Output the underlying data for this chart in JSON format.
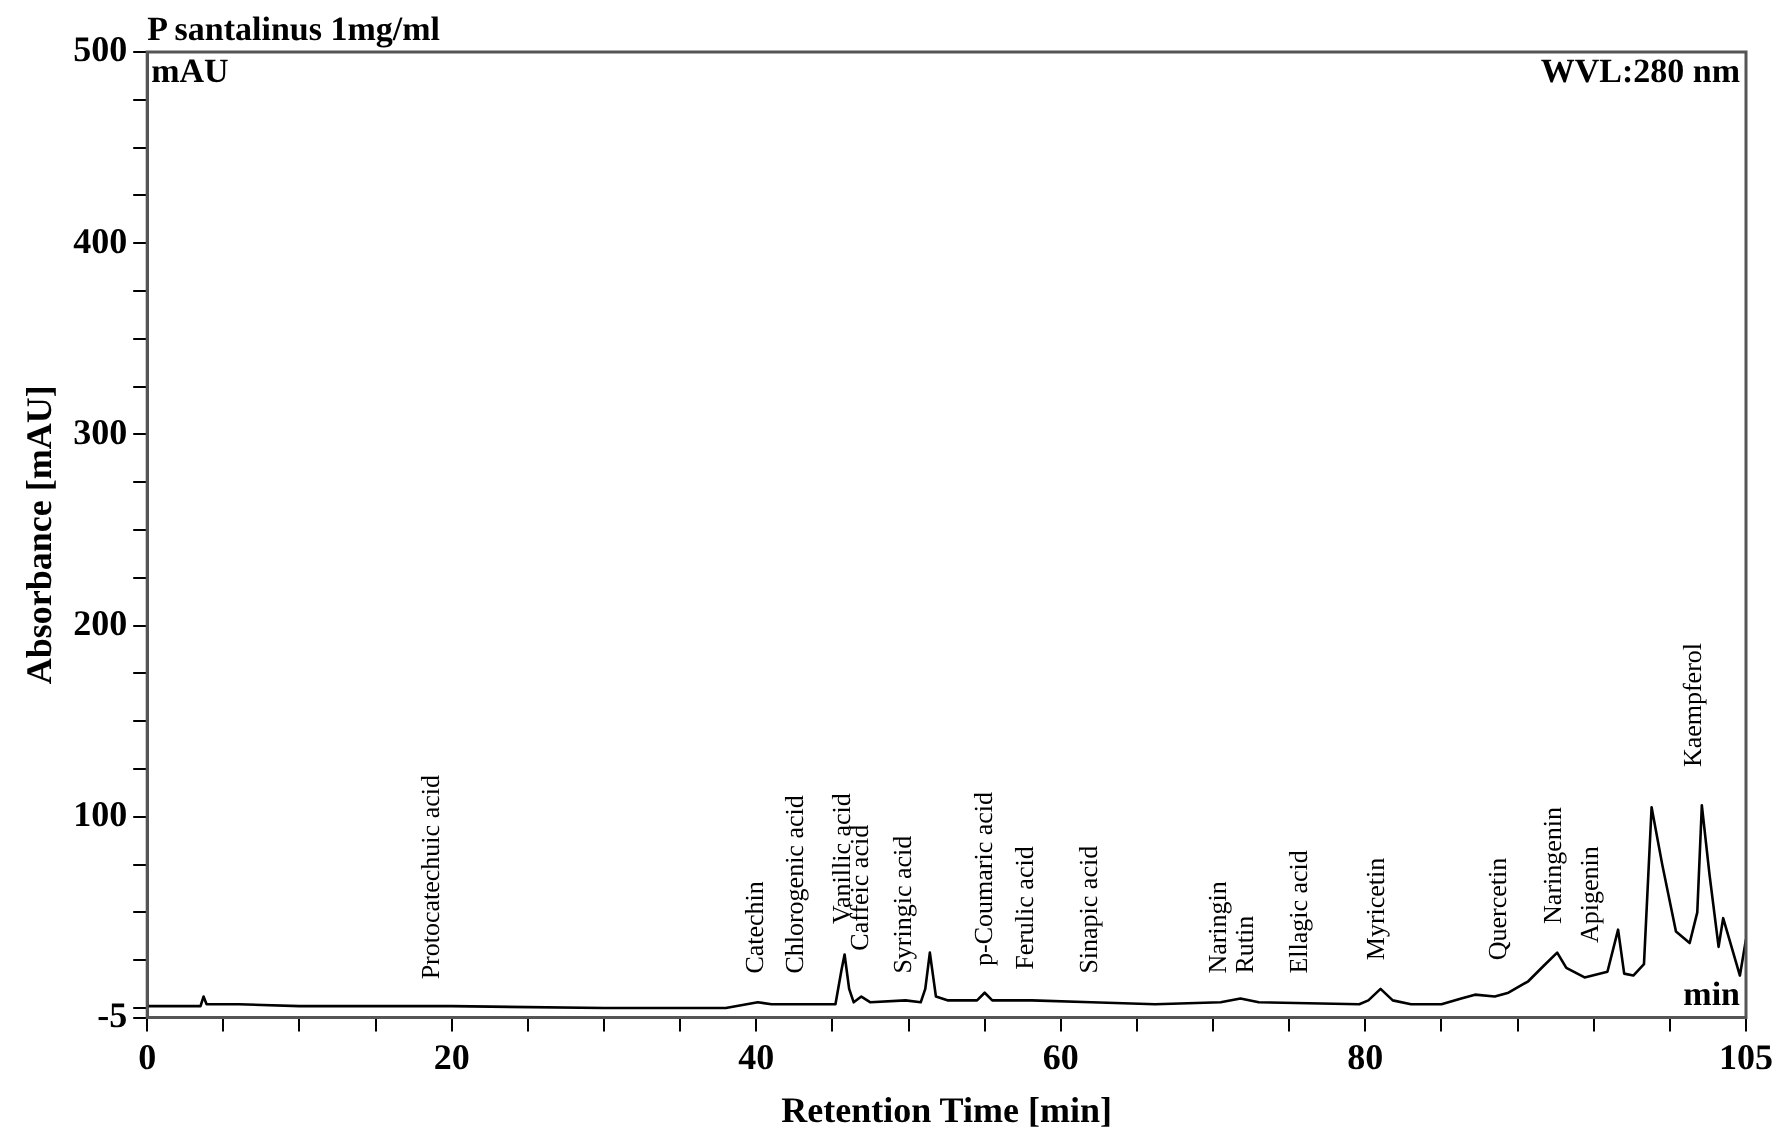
{
  "chart_data": {
    "type": "line",
    "title": "P santalinus 1mg/ml",
    "xlabel": "Retention Time [min]",
    "ylabel": "Absorbance [mAU]",
    "xlim": [
      0,
      105
    ],
    "ylim": [
      -5,
      500
    ],
    "xticks": [
      0,
      {
        "value": 5,
        "label": null
      },
      {
        "value": 10,
        "label": null
      },
      {
        "value": 15,
        "label": null
      },
      20,
      {
        "value": 25,
        "label": null
      },
      {
        "value": 30,
        "label": null
      },
      {
        "value": 35,
        "label": null
      },
      40,
      {
        "value": 45,
        "label": null
      },
      {
        "value": 50,
        "label": null
      },
      {
        "value": 55,
        "label": null
      },
      60,
      {
        "value": 65,
        "label": null
      },
      {
        "value": 70,
        "label": null
      },
      {
        "value": 75,
        "label": null
      },
      80,
      {
        "value": 85,
        "label": null
      },
      {
        "value": 90,
        "label": null
      },
      {
        "value": 95,
        "label": null
      },
      {
        "value": 100,
        "label": null
      },
      105
    ],
    "yticks": [
      -5,
      {
        "value": 0,
        "label": null
      },
      {
        "value": 25,
        "label": null
      },
      {
        "value": 50,
        "label": null
      },
      {
        "value": 75,
        "label": null
      },
      100,
      {
        "value": 125,
        "label": null
      },
      {
        "value": 150,
        "label": null
      },
      {
        "value": 175,
        "label": null
      },
      200,
      {
        "value": 225,
        "label": null
      },
      {
        "value": 250,
        "label": null
      },
      {
        "value": 275,
        "label": null
      },
      300,
      {
        "value": 325,
        "label": null
      },
      {
        "value": 350,
        "label": null
      },
      {
        "value": 375,
        "label": null
      },
      400,
      {
        "value": 425,
        "label": null
      },
      {
        "value": 450,
        "label": null
      },
      {
        "value": 475,
        "label": null
      },
      500
    ],
    "grid": false,
    "legend": false,
    "marker": "none",
    "line_style": "solid",
    "series": [
      {
        "color": "#000000",
        "x": [
          0,
          3.5,
          3.7,
          3.9,
          6,
          10,
          20,
          30,
          38,
          40.1,
          41,
          42.7,
          43.5,
          45.2,
          45.6,
          45.8,
          46.1,
          46.4,
          46.9,
          47.5,
          49.8,
          50.8,
          51.1,
          51.4,
          51.8,
          52.6,
          54.5,
          55.0,
          55.5,
          58.1,
          62,
          66.2,
          70.5,
          71.8,
          73,
          79.6,
          80.2,
          81.0,
          81.8,
          83,
          85,
          86.3,
          87.2,
          88.5,
          89.4,
          90.7,
          91.7,
          92.6,
          93.2,
          94.4,
          95.9,
          96.6,
          97.0,
          97.6,
          98.3,
          98.8,
          99.5,
          100.4,
          101.3,
          101.8,
          102.1,
          102.6,
          103.2,
          103.5,
          104.6,
          105
        ],
        "values": [
          1,
          1,
          6,
          2,
          2,
          1,
          1,
          0,
          0,
          3,
          2,
          2,
          2,
          2,
          20,
          28,
          10,
          3,
          6,
          3,
          4,
          3,
          10,
          29,
          6,
          4,
          4,
          8,
          4,
          4,
          3,
          2,
          3,
          5,
          3,
          2,
          4,
          10,
          4,
          2,
          2,
          5,
          7,
          6,
          8,
          14,
          22,
          29,
          21,
          16,
          19,
          41,
          18,
          17,
          23,
          105,
          75,
          40,
          34,
          50,
          106,
          70,
          32,
          47,
          17,
          36
        ]
      }
    ],
    "annotations": [
      "mAU",
      "WVL:280 nm",
      "min",
      "Protocatechuic acid",
      "Catechin",
      "Chlorogenic acid",
      "Vanillic acid",
      "Caffeic acid",
      "Syringic acid",
      "p-Coumaric acid",
      "Ferulic acid",
      "Sinapic acid",
      "Naringin",
      "Rutin",
      "Ellagic acid",
      "Myricetin",
      "Quercetin",
      "Naringenin",
      "Apigenin",
      "Kaempferol"
    ]
  }
}
